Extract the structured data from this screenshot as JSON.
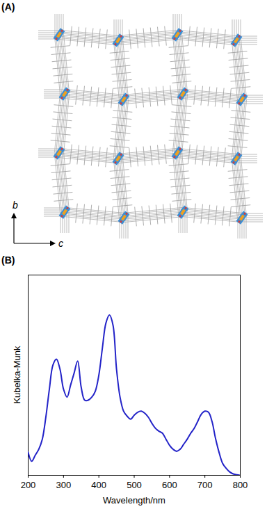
{
  "structure_panel": {
    "label": "(A)",
    "axis_labels": [
      "b",
      "c"
    ]
  },
  "chart_data": {
    "type": "line",
    "title": "(B)",
    "x_label": "Wavelength/nm",
    "y_label": "Kubelka-Munk",
    "x": [
      200,
      210,
      220,
      230,
      240,
      250,
      260,
      270,
      280,
      290,
      300,
      310,
      320,
      330,
      340,
      350,
      360,
      370,
      380,
      390,
      400,
      410,
      420,
      430,
      440,
      450,
      460,
      470,
      480,
      490,
      500,
      510,
      520,
      530,
      540,
      550,
      560,
      570,
      580,
      590,
      600,
      610,
      620,
      630,
      640,
      650,
      660,
      670,
      680,
      690,
      700,
      710,
      720,
      730,
      740,
      750,
      760,
      770,
      780,
      790,
      800
    ],
    "values": [
      0.115,
      0.07,
      0.1,
      0.13,
      0.18,
      0.29,
      0.43,
      0.55,
      0.58,
      0.53,
      0.43,
      0.39,
      0.45,
      0.51,
      0.57,
      0.44,
      0.375,
      0.375,
      0.39,
      0.42,
      0.5,
      0.635,
      0.76,
      0.8,
      0.75,
      0.53,
      0.39,
      0.32,
      0.295,
      0.28,
      0.3,
      0.315,
      0.32,
      0.31,
      0.29,
      0.26,
      0.235,
      0.22,
      0.21,
      0.18,
      0.15,
      0.13,
      0.12,
      0.13,
      0.155,
      0.18,
      0.21,
      0.235,
      0.27,
      0.305,
      0.32,
      0.315,
      0.27,
      0.185,
      0.115,
      0.06,
      0.035,
      0.017,
      0.007,
      0.003,
      0.0
    ],
    "color": "#2323c8",
    "xlim": [
      200,
      800
    ],
    "xticks": [
      200,
      300,
      400,
      500,
      600,
      700,
      800
    ],
    "ylim": [
      0,
      1
    ],
    "tick_labels": "x"
  }
}
